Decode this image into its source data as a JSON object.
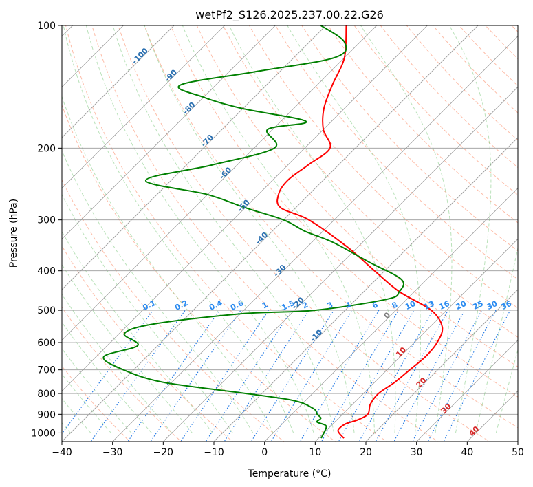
{
  "chart_data": {
    "type": "line",
    "title": "wetPf2_S126.2025.237.00.22.G26",
    "xlabel": "Temperature (°C)",
    "ylabel": "Pressure (hPa)",
    "xlim": [
      -40,
      50
    ],
    "ylim": [
      1050,
      100
    ],
    "y_scale": "log",
    "grid": true,
    "x_ticks": [
      -40,
      -30,
      -20,
      -10,
      0,
      10,
      20,
      30,
      40,
      50
    ],
    "y_ticks": [
      1000,
      900,
      800,
      700,
      600,
      500,
      400,
      300,
      200,
      100
    ],
    "isotherm_labels": [
      -100,
      -90,
      -80,
      -70,
      -60,
      -50,
      -40,
      -30,
      -20,
      -10,
      0,
      10,
      20,
      30,
      40
    ],
    "mixing_ratio_labels": [
      "0.1",
      "0.2",
      "0.4",
      "0.6",
      "1",
      "1.5",
      "2",
      "3",
      "4",
      "6",
      "8",
      "10",
      "13",
      "16",
      "20",
      "25",
      "30",
      "36"
    ],
    "series": [
      {
        "color": "#ff0000",
        "points": [
          [
            15.0,
            1030
          ],
          [
            13.0,
            1000
          ],
          [
            12.2,
            980
          ],
          [
            12.5,
            950
          ],
          [
            14.0,
            930
          ],
          [
            15.0,
            900
          ],
          [
            13.5,
            850
          ],
          [
            13.0,
            800
          ],
          [
            14.0,
            750
          ],
          [
            14.5,
            700
          ],
          [
            15.0,
            650
          ],
          [
            14.5,
            600
          ],
          [
            12.5,
            550
          ],
          [
            7.0,
            500
          ],
          [
            -3.0,
            450
          ],
          [
            -12.0,
            400
          ],
          [
            -22.0,
            350
          ],
          [
            -35.0,
            300
          ],
          [
            -43.0,
            280
          ],
          [
            -46.0,
            260
          ],
          [
            -47.0,
            240
          ],
          [
            -46.0,
            220
          ],
          [
            -45.0,
            200
          ],
          [
            -50.0,
            180
          ],
          [
            -54.0,
            160
          ],
          [
            -57.0,
            140
          ],
          [
            -60.0,
            120
          ],
          [
            -66.0,
            100
          ]
        ]
      },
      {
        "color": "#008000",
        "points": [
          [
            10.5,
            1030
          ],
          [
            10.0,
            1000
          ],
          [
            9.0,
            960
          ],
          [
            6.5,
            940
          ],
          [
            6.5,
            920
          ],
          [
            5.0,
            900
          ],
          [
            3.0,
            870
          ],
          [
            -3.0,
            830
          ],
          [
            -17.0,
            790
          ],
          [
            -32.0,
            750
          ],
          [
            -42.0,
            700
          ],
          [
            -48.5,
            650
          ],
          [
            -44.0,
            610
          ],
          [
            -49.0,
            570
          ],
          [
            -45.0,
            540
          ],
          [
            -30.0,
            510
          ],
          [
            -16.0,
            500
          ],
          [
            -4.0,
            470
          ],
          [
            -3.0,
            450
          ],
          [
            -5.0,
            420
          ],
          [
            -15.0,
            380
          ],
          [
            -26.0,
            340
          ],
          [
            -33.5,
            320
          ],
          [
            -40.0,
            300
          ],
          [
            -50.0,
            280
          ],
          [
            -60.0,
            260
          ],
          [
            -75.0,
            240
          ],
          [
            -65.0,
            220
          ],
          [
            -56.0,
            200
          ],
          [
            -61.0,
            180
          ],
          [
            -55.0,
            172
          ],
          [
            -70.0,
            160
          ],
          [
            -80.0,
            150
          ],
          [
            -87.0,
            140
          ],
          [
            -75.0,
            130
          ],
          [
            -62.0,
            120
          ],
          [
            -63.0,
            110
          ],
          [
            -71.0,
            100
          ]
        ]
      }
    ]
  }
}
